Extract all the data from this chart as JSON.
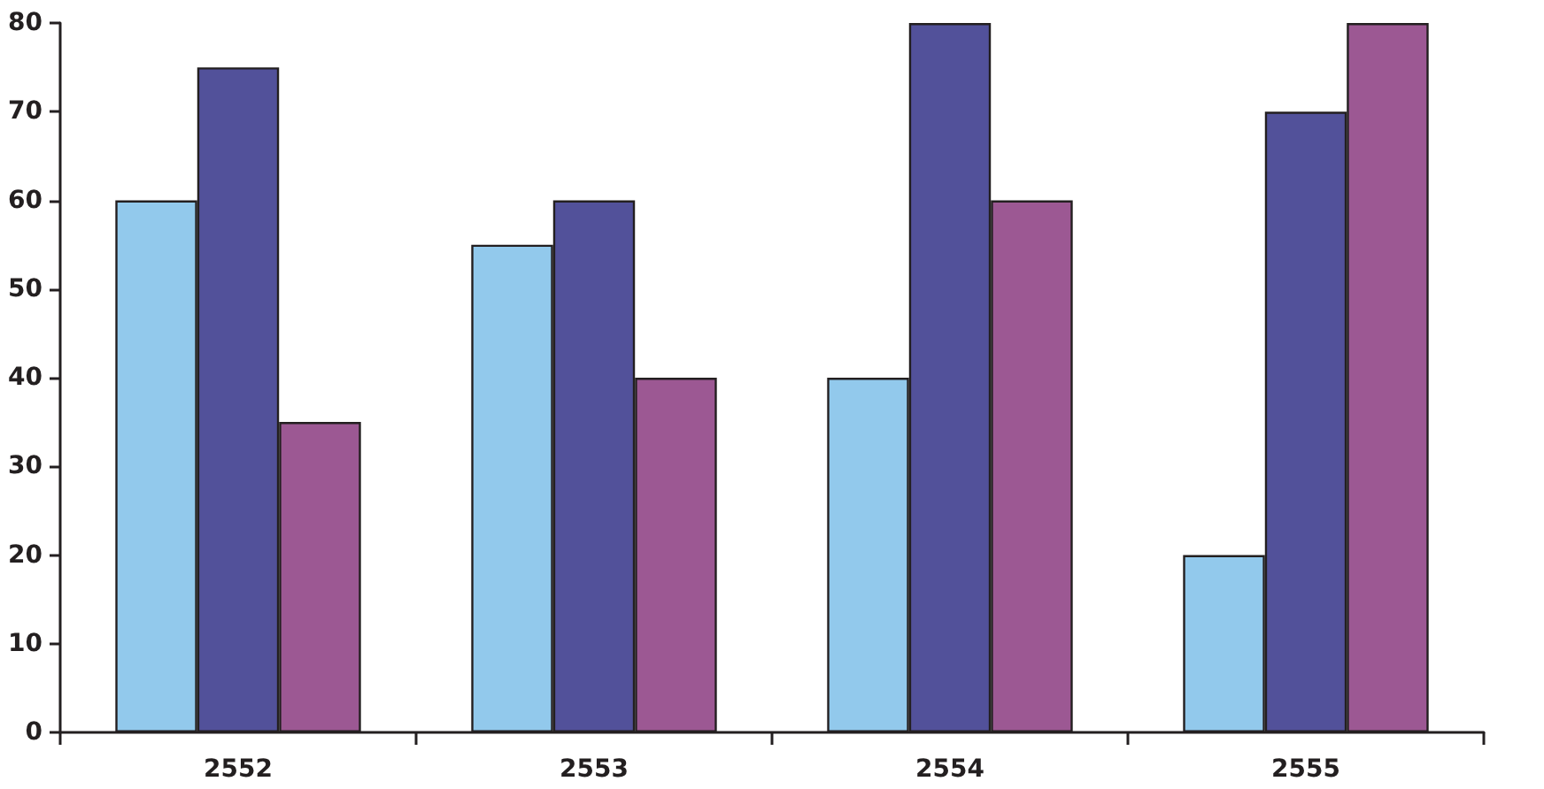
{
  "chart_data": {
    "type": "bar",
    "categories": [
      "2552",
      "2553",
      "2554",
      "2555"
    ],
    "series": [
      {
        "color": "#92c9ec",
        "values": [
          60,
          55,
          40,
          20
        ]
      },
      {
        "color": "#52519a",
        "values": [
          75,
          60,
          80,
          70
        ]
      },
      {
        "color": "#9c5893",
        "values": [
          35,
          40,
          60,
          80
        ]
      }
    ],
    "ylim": [
      0,
      80
    ],
    "yticks": [
      0,
      10,
      20,
      30,
      40,
      50,
      60,
      70,
      80
    ]
  }
}
